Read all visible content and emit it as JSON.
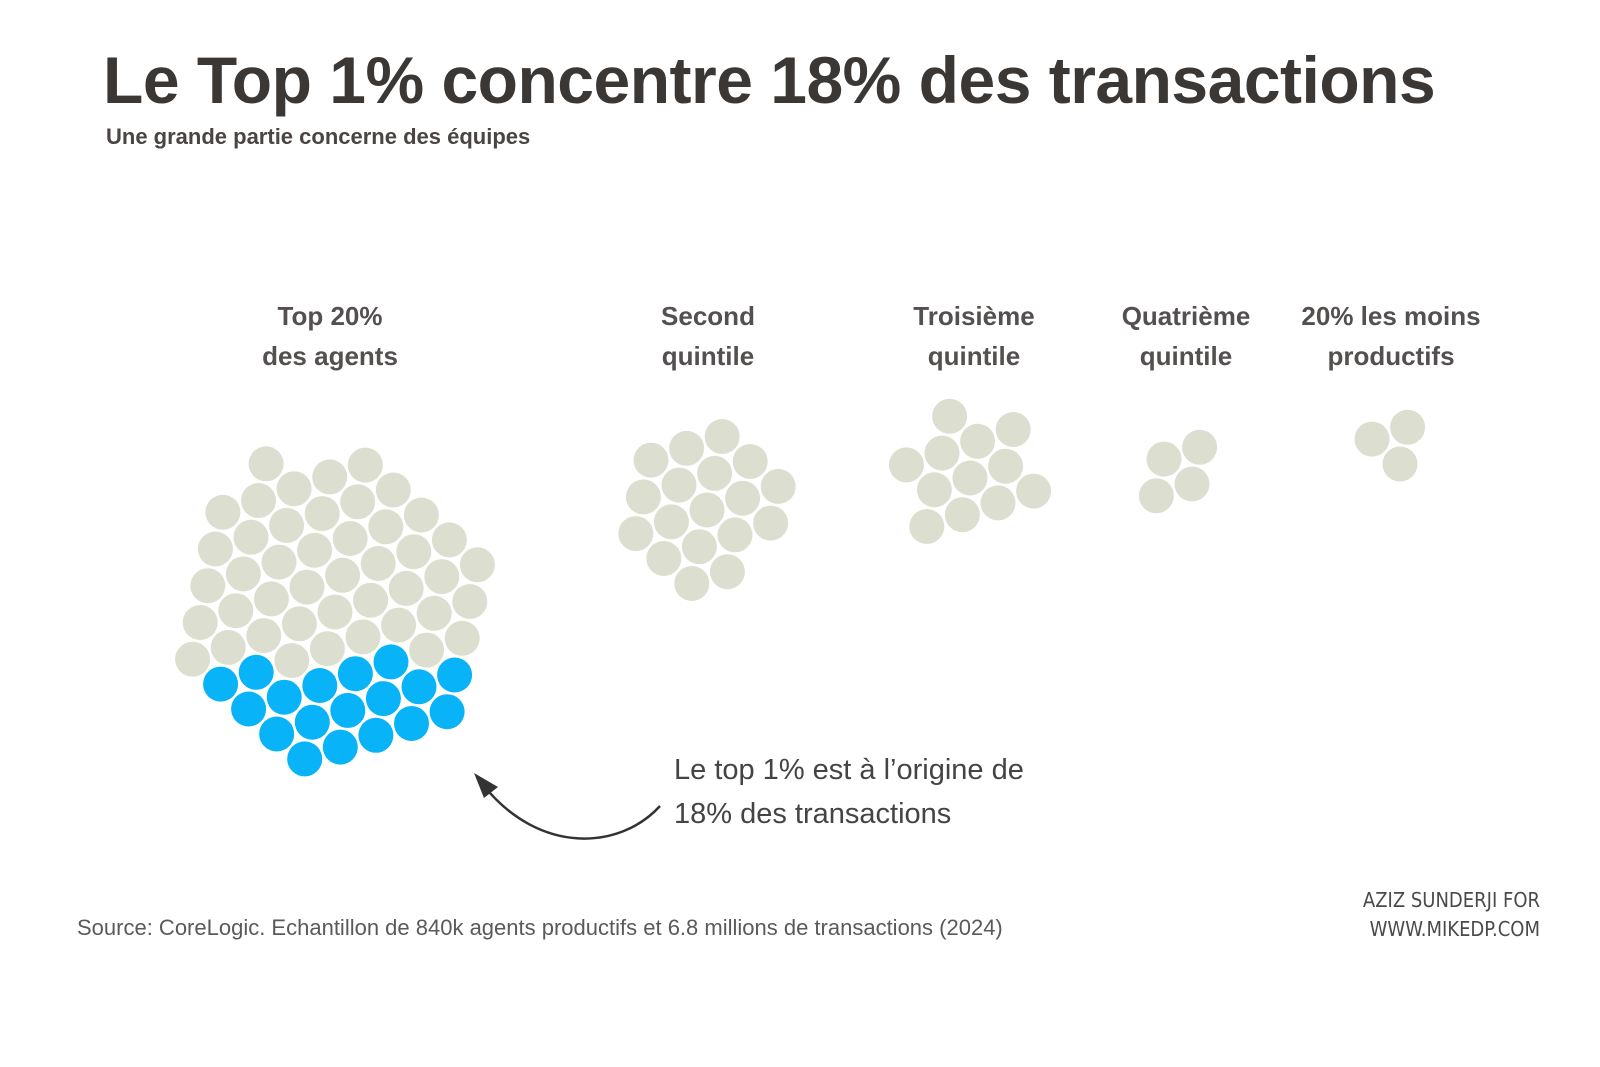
{
  "title": "Le Top 1% concentre 18% des transactions",
  "subtitle": "Une grande partie concerne des équipes",
  "chart_data": {
    "type": "dot-cluster",
    "unit": "share of transactions by agent quintile (one dot ≈ 1%)",
    "groups": [
      {
        "label_lines": [
          "Top 20%",
          "des agents"
        ],
        "dots_total": 62,
        "dots_highlighted": 18
      },
      {
        "label_lines": [
          "Second",
          "quintile"
        ],
        "dots_total": 18,
        "dots_highlighted": 0
      },
      {
        "label_lines": [
          "Troisième",
          "quintile"
        ],
        "dots_total": 12,
        "dots_highlighted": 0
      },
      {
        "label_lines": [
          "Quatrième",
          "quintile"
        ],
        "dots_total": 4,
        "dots_highlighted": 0
      },
      {
        "label_lines": [
          "20% les moins",
          "productifs"
        ],
        "dots_total": 3,
        "dots_highlighted": 0
      }
    ],
    "highlight": {
      "label": "Top 1%",
      "value": 18,
      "unit": "%"
    }
  },
  "annotation": {
    "line1": "Le top 1% est à l’origine de",
    "line2": "18% des transactions"
  },
  "source": "Source: CoreLogic. Echantillon de 840k agents productifs et 6.8 millions de transactions (2024)",
  "credit": {
    "line1": "AZIZ SUNDERJI FOR",
    "line2": "WWW.MIKEDP.COM"
  },
  "colors": {
    "dot": "#dcdfcf",
    "highlight": "#09b3f7",
    "arrow": "#333333"
  }
}
